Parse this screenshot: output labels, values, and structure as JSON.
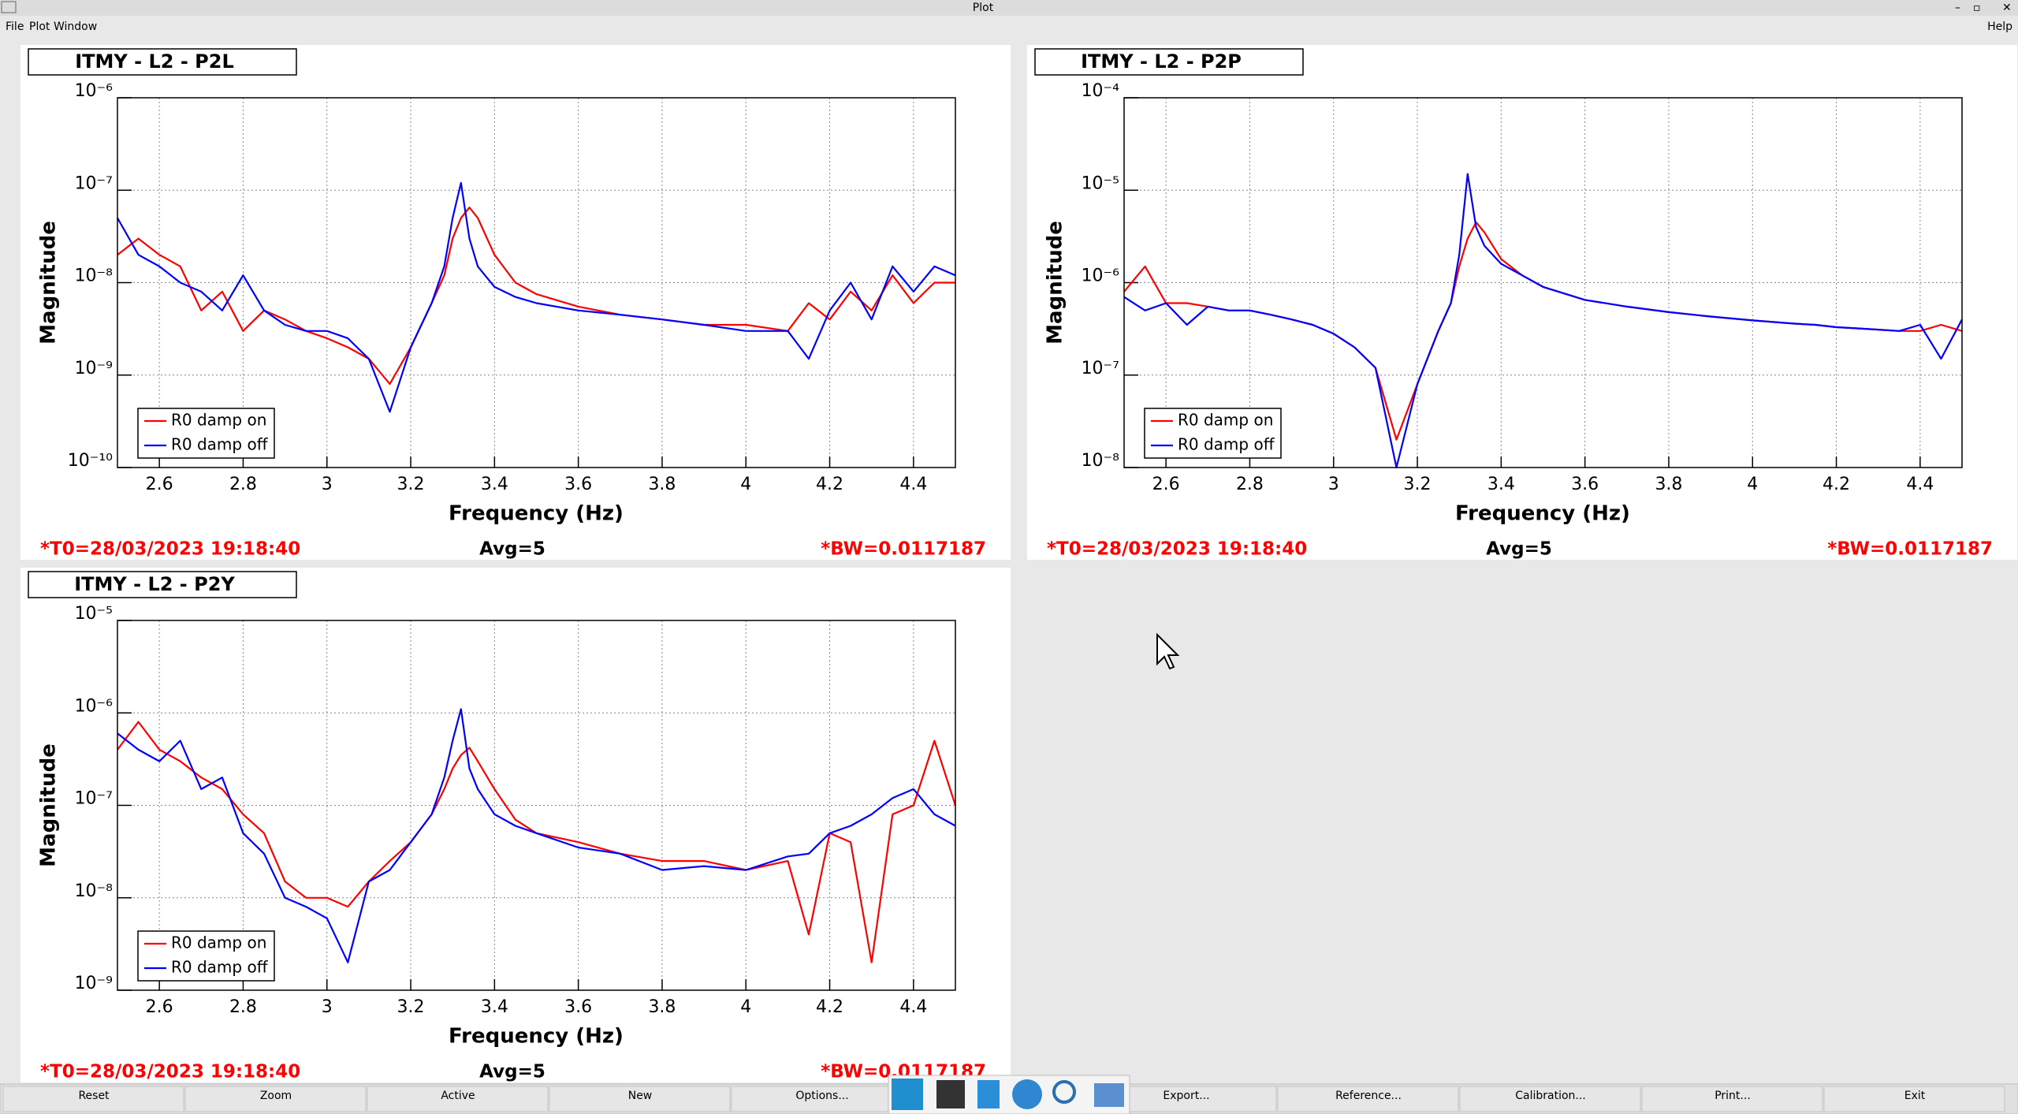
{
  "window": {
    "title": "Plot",
    "menu": [
      "File",
      "Plot",
      "Window"
    ],
    "help": "Help",
    "buttons": [
      "Reset",
      "Zoom",
      "Active",
      "New",
      "Options...",
      "Export...",
      "Reference...",
      "Calibration...",
      "Print...",
      "Exit"
    ]
  },
  "chart_data": [
    {
      "type": "line",
      "title": "ITMY - L2 - P2L",
      "xlabel": "Frequency (Hz)",
      "ylabel": "Magnitude",
      "footer": {
        "t0": "*T0=28/03/2023 19:18:40",
        "avg": "Avg=5",
        "bw": "*BW=0.0117187"
      },
      "log_y": true,
      "grid": true,
      "legend": "bottom-left",
      "xlim": [
        2.5,
        4.5
      ],
      "xticks": [
        2.6,
        2.8,
        3,
        3.2,
        3.4,
        3.6,
        3.8,
        4,
        4.2,
        4.4
      ],
      "ylim": [
        1e-10,
        1e-06
      ],
      "yticks": [
        {
          "value": 1e-10,
          "label": "10⁻¹⁰"
        },
        {
          "value": 1e-09,
          "label": "10⁻⁹"
        },
        {
          "value": 1e-08,
          "label": "10⁻⁸"
        },
        {
          "value": 1e-07,
          "label": "10⁻⁷"
        },
        {
          "value": 1e-06,
          "label": "10⁻⁶"
        }
      ],
      "x": [
        2.5,
        2.55,
        2.6,
        2.65,
        2.7,
        2.75,
        2.8,
        2.85,
        2.9,
        2.95,
        3.0,
        3.05,
        3.1,
        3.15,
        3.2,
        3.25,
        3.28,
        3.3,
        3.32,
        3.34,
        3.36,
        3.4,
        3.45,
        3.5,
        3.6,
        3.7,
        3.8,
        3.9,
        4.0,
        4.1,
        4.15,
        4.2,
        4.25,
        4.3,
        4.35,
        4.4,
        4.45,
        4.5
      ],
      "series": [
        {
          "name": "R0 damp on",
          "color": "#ff0000",
          "values": [
            2e-08,
            3e-08,
            2e-08,
            1.5e-08,
            5e-09,
            8e-09,
            3e-09,
            5e-09,
            4e-09,
            3e-09,
            2.5e-09,
            2e-09,
            1.5e-09,
            8e-10,
            2e-09,
            6e-09,
            1.2e-08,
            3e-08,
            5e-08,
            6.5e-08,
            5e-08,
            2e-08,
            1e-08,
            7.5e-09,
            5.5e-09,
            4.5e-09,
            4e-09,
            3.5e-09,
            3.5e-09,
            3e-09,
            6e-09,
            4e-09,
            8e-09,
            5e-09,
            1.2e-08,
            6e-09,
            1e-08,
            1e-08
          ]
        },
        {
          "name": "R0 damp off",
          "color": "#0000ff",
          "values": [
            5e-08,
            2e-08,
            1.5e-08,
            1e-08,
            8e-09,
            5e-09,
            1.2e-08,
            5e-09,
            3.5e-09,
            3e-09,
            3e-09,
            2.5e-09,
            1.5e-09,
            4e-10,
            2e-09,
            6e-09,
            1.5e-08,
            5e-08,
            1.2e-07,
            3e-08,
            1.5e-08,
            9e-09,
            7e-09,
            6e-09,
            5e-09,
            4.5e-09,
            4e-09,
            3.5e-09,
            3e-09,
            3e-09,
            1.5e-09,
            5e-09,
            1e-08,
            4e-09,
            1.5e-08,
            8e-09,
            1.5e-08,
            1.2e-08
          ]
        }
      ]
    },
    {
      "type": "line",
      "title": "ITMY - L2 - P2P",
      "xlabel": "Frequency (Hz)",
      "ylabel": "Magnitude",
      "footer": {
        "t0": "*T0=28/03/2023 19:18:40",
        "avg": "Avg=5",
        "bw": "*BW=0.0117187"
      },
      "log_y": true,
      "grid": true,
      "legend": "bottom-left",
      "xlim": [
        2.5,
        4.5
      ],
      "xticks": [
        2.6,
        2.8,
        3,
        3.2,
        3.4,
        3.6,
        3.8,
        4,
        4.2,
        4.4
      ],
      "ylim": [
        1e-08,
        0.0001
      ],
      "yticks": [
        {
          "value": 1e-08,
          "label": "10⁻⁸"
        },
        {
          "value": 1e-07,
          "label": "10⁻⁷"
        },
        {
          "value": 1e-06,
          "label": "10⁻⁶"
        },
        {
          "value": 1e-05,
          "label": "10⁻⁵"
        },
        {
          "value": 0.0001,
          "label": "10⁻⁴"
        }
      ],
      "x": [
        2.5,
        2.55,
        2.6,
        2.65,
        2.7,
        2.75,
        2.8,
        2.85,
        2.9,
        2.95,
        3.0,
        3.05,
        3.1,
        3.15,
        3.2,
        3.25,
        3.28,
        3.3,
        3.32,
        3.34,
        3.36,
        3.4,
        3.45,
        3.5,
        3.6,
        3.7,
        3.8,
        3.9,
        4.0,
        4.1,
        4.15,
        4.2,
        4.25,
        4.3,
        4.35,
        4.4,
        4.45,
        4.5
      ],
      "series": [
        {
          "name": "R0 damp on",
          "color": "#ff0000",
          "values": [
            8e-07,
            1.5e-06,
            6e-07,
            6e-07,
            5.5e-07,
            5e-07,
            5e-07,
            4.5e-07,
            4e-07,
            3.5e-07,
            2.8e-07,
            2e-07,
            1.2e-07,
            2e-08,
            8e-08,
            3e-07,
            6e-07,
            1.5e-06,
            3e-06,
            4.5e-06,
            3.5e-06,
            1.8e-06,
            1.2e-06,
            9e-07,
            6.5e-07,
            5.5e-07,
            4.8e-07,
            4.3e-07,
            3.9e-07,
            3.6e-07,
            3.5e-07,
            3.3e-07,
            3.2e-07,
            3.1e-07,
            3e-07,
            3e-07,
            3.5e-07,
            3e-07
          ]
        },
        {
          "name": "R0 damp off",
          "color": "#0000ff",
          "values": [
            7e-07,
            5e-07,
            6e-07,
            3.5e-07,
            5.5e-07,
            5e-07,
            5e-07,
            4.5e-07,
            4e-07,
            3.5e-07,
            2.8e-07,
            2e-07,
            1.2e-07,
            1e-08,
            8e-08,
            3e-07,
            6e-07,
            2e-06,
            1.5e-05,
            4e-06,
            2.5e-06,
            1.6e-06,
            1.2e-06,
            9e-07,
            6.5e-07,
            5.5e-07,
            4.8e-07,
            4.3e-07,
            3.9e-07,
            3.6e-07,
            3.5e-07,
            3.3e-07,
            3.2e-07,
            3.1e-07,
            3e-07,
            3.5e-07,
            1.5e-07,
            4e-07
          ]
        }
      ]
    },
    {
      "type": "line",
      "title": "ITMY - L2 - P2Y",
      "xlabel": "Frequency (Hz)",
      "ylabel": "Magnitude",
      "footer": {
        "t0": "*T0=28/03/2023 19:18:40",
        "avg": "Avg=5",
        "bw": "*BW=0.0117187"
      },
      "log_y": true,
      "grid": true,
      "legend": "bottom-left",
      "xlim": [
        2.5,
        4.5
      ],
      "xticks": [
        2.6,
        2.8,
        3,
        3.2,
        3.4,
        3.6,
        3.8,
        4,
        4.2,
        4.4
      ],
      "ylim": [
        1e-09,
        1e-05
      ],
      "yticks": [
        {
          "value": 1e-09,
          "label": "10⁻⁹"
        },
        {
          "value": 1e-08,
          "label": "10⁻⁸"
        },
        {
          "value": 1e-07,
          "label": "10⁻⁷"
        },
        {
          "value": 1e-06,
          "label": "10⁻⁶"
        },
        {
          "value": 1e-05,
          "label": "10⁻⁵"
        }
      ],
      "x": [
        2.5,
        2.55,
        2.6,
        2.65,
        2.7,
        2.75,
        2.8,
        2.85,
        2.9,
        2.95,
        3.0,
        3.05,
        3.1,
        3.15,
        3.2,
        3.25,
        3.28,
        3.3,
        3.32,
        3.34,
        3.36,
        3.4,
        3.45,
        3.5,
        3.6,
        3.7,
        3.8,
        3.9,
        4.0,
        4.1,
        4.15,
        4.2,
        4.25,
        4.3,
        4.35,
        4.4,
        4.45,
        4.5
      ],
      "series": [
        {
          "name": "R0 damp on",
          "color": "#ff0000",
          "values": [
            4e-07,
            8e-07,
            4e-07,
            3e-07,
            2e-07,
            1.5e-07,
            8e-08,
            5e-08,
            1.5e-08,
            1e-08,
            1e-08,
            8e-09,
            1.5e-08,
            2.5e-08,
            4e-08,
            8e-08,
            1.5e-07,
            2.5e-07,
            3.5e-07,
            4.2e-07,
            3e-07,
            1.5e-07,
            7e-08,
            5e-08,
            4e-08,
            3e-08,
            2.5e-08,
            2.5e-08,
            2e-08,
            2.5e-08,
            4e-09,
            5e-08,
            4e-08,
            2e-09,
            8e-08,
            1e-07,
            5e-07,
            1e-07
          ]
        },
        {
          "name": "R0 damp off",
          "color": "#0000ff",
          "values": [
            6e-07,
            4e-07,
            3e-07,
            5e-07,
            1.5e-07,
            2e-07,
            5e-08,
            3e-08,
            1e-08,
            8e-09,
            6e-09,
            2e-09,
            1.5e-08,
            2e-08,
            4e-08,
            8e-08,
            2e-07,
            5e-07,
            1.1e-06,
            2.5e-07,
            1.5e-07,
            8e-08,
            6e-08,
            5e-08,
            3.5e-08,
            3e-08,
            2e-08,
            2.2e-08,
            2e-08,
            2.8e-08,
            3e-08,
            5e-08,
            6e-08,
            8e-08,
            1.2e-07,
            1.5e-07,
            8e-08,
            6e-08
          ]
        }
      ]
    }
  ]
}
